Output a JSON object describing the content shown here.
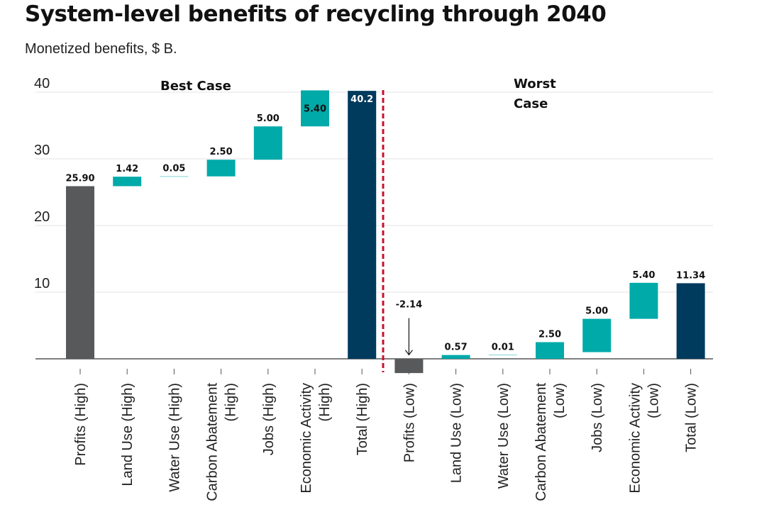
{
  "title": "System-level benefits of recycling through 2040",
  "subtitle": "Monetized benefits, $ B.",
  "chart_data": {
    "type": "bar",
    "subtype": "waterfall",
    "ylim": [
      -2.14,
      40
    ],
    "yticks": [
      10,
      20,
      30,
      40
    ],
    "grid": true,
    "colors": {
      "base": "#58595b",
      "increment": "#00aaa9",
      "total": "#003a5d",
      "divider": "#c8102e"
    },
    "groups": [
      {
        "label": "Best Case",
        "label_lines": [
          "Best Case"
        ]
      },
      {
        "label": "Worst Case",
        "label_lines": [
          "Worst",
          "Case"
        ]
      }
    ],
    "bars": [
      {
        "category": [
          "Profits (High)"
        ],
        "group": 0,
        "kind": "base",
        "start": 0,
        "end": 25.9,
        "label": "25.90"
      },
      {
        "category": [
          "Land Use (High)"
        ],
        "group": 0,
        "kind": "increment",
        "start": 25.9,
        "end": 27.32,
        "label": "1.42"
      },
      {
        "category": [
          "Water Use (High)"
        ],
        "group": 0,
        "kind": "increment",
        "start": 27.32,
        "end": 27.37,
        "label": "0.05"
      },
      {
        "category": [
          "Carbon Abatement",
          "(High)"
        ],
        "group": 0,
        "kind": "increment",
        "start": 27.37,
        "end": 29.87,
        "label": "2.50"
      },
      {
        "category": [
          "Jobs (High)"
        ],
        "group": 0,
        "kind": "increment",
        "start": 29.87,
        "end": 34.87,
        "label": "5.00"
      },
      {
        "category": [
          "Economic Activity",
          "(High)"
        ],
        "group": 0,
        "kind": "increment",
        "start": 34.87,
        "end": 40.27,
        "label": "5.40"
      },
      {
        "category": [
          "Total (High)"
        ],
        "group": 0,
        "kind": "total",
        "start": 0,
        "end": 40.2,
        "label": "40.2"
      },
      {
        "category": [
          "Profits (Low)"
        ],
        "group": 1,
        "kind": "base",
        "start": 0,
        "end": -2.14,
        "label": "-2.14"
      },
      {
        "category": [
          "Land Use (Low)"
        ],
        "group": 1,
        "kind": "increment",
        "start": 0,
        "end": 0.57,
        "label": "0.57"
      },
      {
        "category": [
          "Water Use (Low)"
        ],
        "group": 1,
        "kind": "increment",
        "start": 0.57,
        "end": 0.58,
        "label": "0.01"
      },
      {
        "category": [
          "Carbon Abatement",
          "(Low)"
        ],
        "group": 1,
        "kind": "increment",
        "start": 0,
        "end": 2.5,
        "label": "2.50"
      },
      {
        "category": [
          "Jobs (Low)"
        ],
        "group": 1,
        "kind": "increment",
        "start": 1.0,
        "end": 6.0,
        "label": "5.00"
      },
      {
        "category": [
          "Economic Activity",
          "(Low)"
        ],
        "group": 1,
        "kind": "increment",
        "start": 6.0,
        "end": 11.4,
        "label": "5.40"
      },
      {
        "category": [
          "Total (Low)"
        ],
        "group": 1,
        "kind": "total",
        "start": 0,
        "end": 11.34,
        "label": "11.34"
      }
    ]
  }
}
